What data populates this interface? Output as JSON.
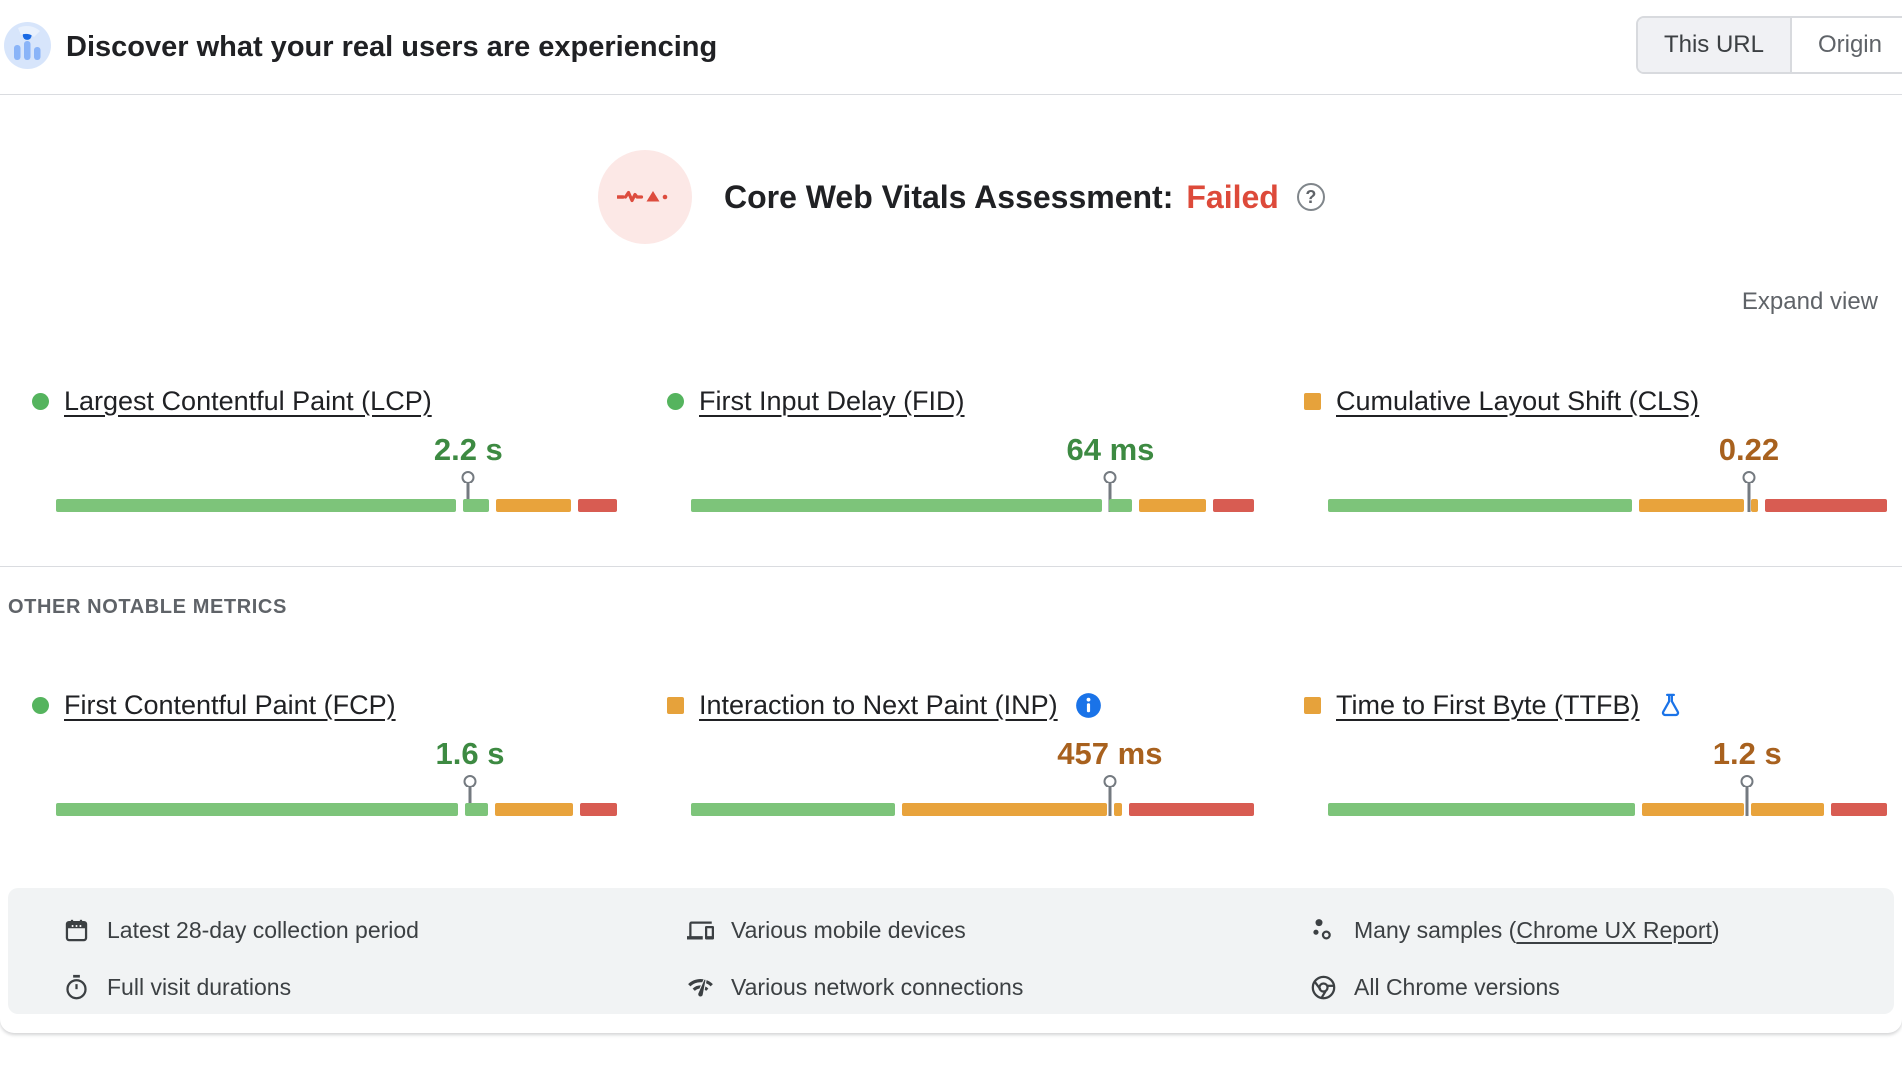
{
  "header": {
    "title": "Discover what your real users are experiencing",
    "toggle": {
      "options": [
        "This URL",
        "Origin"
      ],
      "selected": "This URL"
    }
  },
  "assessment": {
    "label": "Core Web Vitals Assessment:",
    "result": "Failed",
    "help_icon": "help-icon",
    "expand_label": "Expand view"
  },
  "section_label": "OTHER NOTABLE METRICS",
  "metrics": {
    "lcp": {
      "label": "Largest Contentful Paint (LCP)",
      "value": "2.2 s",
      "rating": "good",
      "marker_pct": 73.5,
      "segments": [
        {
          "color": "green",
          "pct": 72.3
        },
        {
          "color": "green",
          "pct": 4.6
        },
        {
          "color": "orange",
          "pct": 13.6
        },
        {
          "color": "red",
          "pct": 7.0
        }
      ]
    },
    "fid": {
      "label": "First Input Delay (FID)",
      "value": "64 ms",
      "rating": "good",
      "marker_pct": 74.5,
      "segments": [
        {
          "color": "green",
          "pct": 73.0
        },
        {
          "color": "green",
          "pct": 4.0
        },
        {
          "color": "orange",
          "pct": 12.0
        },
        {
          "color": "red",
          "pct": 7.2
        }
      ]
    },
    "cls": {
      "label": "Cumulative Layout Shift (CLS)",
      "value": "0.22",
      "rating": "ni",
      "marker_pct": 75.3,
      "segments": [
        {
          "color": "green",
          "pct": 54.8
        },
        {
          "color": "orange",
          "pct": 18.9
        },
        {
          "color": "orange",
          "pct": 1.2
        },
        {
          "color": "red",
          "pct": 22.0
        }
      ]
    },
    "fcp": {
      "label": "First Contentful Paint (FCP)",
      "value": "1.6 s",
      "rating": "good",
      "marker_pct": 73.8,
      "segments": [
        {
          "color": "green",
          "pct": 72.5
        },
        {
          "color": "green",
          "pct": 4.3
        },
        {
          "color": "orange",
          "pct": 14.0
        },
        {
          "color": "red",
          "pct": 6.7
        }
      ]
    },
    "inp": {
      "label": "Interaction to Next Paint (INP)",
      "value": "457 ms",
      "rating": "ni",
      "marker_pct": 74.4,
      "badge": "info-icon",
      "segments": [
        {
          "color": "green",
          "pct": 36.6
        },
        {
          "color": "orange",
          "pct": 36.7
        },
        {
          "color": "orange",
          "pct": 1.4
        },
        {
          "color": "red",
          "pct": 22.5
        }
      ]
    },
    "ttfb": {
      "label": "Time to First Byte (TTFB)",
      "value": "1.2 s",
      "rating": "ni",
      "marker_pct": 75.0,
      "badge": "flask-icon",
      "segments": [
        {
          "color": "green",
          "pct": 55.6
        },
        {
          "color": "orange",
          "pct": 18.3
        },
        {
          "color": "orange",
          "pct": 13.2
        },
        {
          "color": "red",
          "pct": 10.2
        }
      ]
    }
  },
  "footer": {
    "items": [
      {
        "icon": "calendar-icon",
        "text": "Latest 28-day collection period"
      },
      {
        "icon": "timer-icon",
        "text": "Full visit durations"
      },
      {
        "icon": "devices-icon",
        "text": "Various mobile devices"
      },
      {
        "icon": "network-icon",
        "text": "Various network connections"
      },
      {
        "icon": "samples-icon",
        "prefix": "Many samples (",
        "link": "Chrome UX Report",
        "suffix": ")"
      },
      {
        "icon": "chrome-icon",
        "text": "All Chrome versions"
      }
    ]
  },
  "colors": {
    "bar_green": "#7dc47a",
    "bar_orange": "#e8a33c",
    "bar_red": "#d85c52",
    "indicator_good": "#55b45e",
    "indicator_ni": "#e6a23b",
    "value_good": "#3d8a42",
    "value_ni": "#a8611e",
    "failed_red": "#dd4a3a",
    "accent_blue": "#1a73e8",
    "badge_bg_pink": "#fce8e6"
  }
}
